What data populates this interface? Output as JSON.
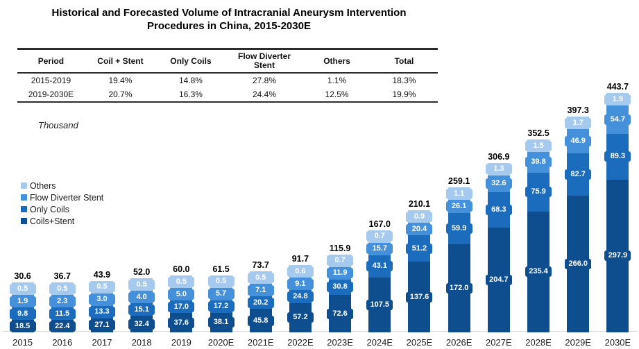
{
  "title": {
    "line1": "Historical and Forecasted Volume of Intracranial Aneurysm Intervention",
    "line2": "Procedures in China, 2015-2030E"
  },
  "table": {
    "headers": [
      "Period",
      "Coil + Stent",
      "Only Coils",
      "Flow Diverter Stent",
      "Others",
      "Total"
    ],
    "rows": [
      [
        "2015-2019",
        "19.4%",
        "14.8%",
        "27.8%",
        "1.1%",
        "18.3%"
      ],
      [
        "2019-2030E",
        "20.7%",
        "16.3%",
        "24.4%",
        "12.5%",
        "19.9%"
      ]
    ]
  },
  "axis_note": "Thousand",
  "legend": [
    {
      "label": "Others",
      "color": "#A6CAEE"
    },
    {
      "label": "Flow Diverter Stent",
      "color": "#4590DA"
    },
    {
      "label": "Only Coils",
      "color": "#1C6CBD"
    },
    {
      "label": "Coils+Stent",
      "color": "#0E4D8E"
    }
  ],
  "chart_data": {
    "type": "bar",
    "stacked": true,
    "unit": "Thousand",
    "title": "Historical and Forecasted Volume of Intracranial Aneurysm Intervention Procedures in China, 2015-2030E",
    "grid": false,
    "legend_position": "middle-left",
    "categories": [
      "2015",
      "2016",
      "2017",
      "2018",
      "2019",
      "2020E",
      "2021E",
      "2022E",
      "2023E",
      "2024E",
      "2025E",
      "2026E",
      "2027E",
      "2028E",
      "2029E",
      "2030E"
    ],
    "series": [
      {
        "name": "Coils+Stent",
        "color": "#0E4D8E",
        "values": [
          18.5,
          22.4,
          27.1,
          32.4,
          37.6,
          38.1,
          45.8,
          57.2,
          72.6,
          107.5,
          137.6,
          172.0,
          204.7,
          235.4,
          266.0,
          297.9
        ]
      },
      {
        "name": "Only Coils",
        "color": "#1C6CBD",
        "values": [
          9.8,
          11.5,
          13.3,
          15.1,
          17.0,
          17.2,
          20.2,
          24.8,
          30.8,
          43.1,
          51.2,
          59.9,
          68.3,
          75.9,
          82.7,
          89.3
        ]
      },
      {
        "name": "Flow Diverter Stent",
        "color": "#4590DA",
        "values": [
          1.9,
          2.3,
          3.0,
          4.0,
          5.0,
          5.7,
          7.1,
          9.1,
          11.9,
          15.7,
          20.4,
          26.1,
          32.6,
          39.8,
          46.9,
          54.7
        ]
      },
      {
        "name": "Others",
        "color": "#A6CAEE",
        "values": [
          0.5,
          0.5,
          0.5,
          0.5,
          0.5,
          0.5,
          0.5,
          0.6,
          0.7,
          0.7,
          0.9,
          1.1,
          1.3,
          1.5,
          1.7,
          1.9
        ]
      }
    ],
    "totals": [
      30.6,
      36.7,
      43.9,
      52.0,
      60.0,
      61.5,
      73.7,
      91.7,
      115.9,
      167.0,
      210.1,
      259.1,
      306.9,
      352.5,
      397.3,
      443.7
    ]
  }
}
